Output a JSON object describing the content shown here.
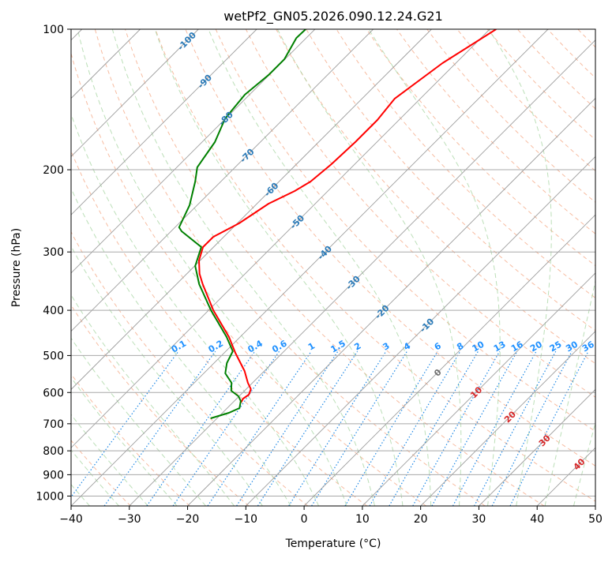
{
  "chart_data": {
    "type": "line",
    "subtype": "skew-t log-p",
    "title": "wetPf2_GN05.2026.090.12.24.G21",
    "xlabel": "Temperature (°C)",
    "ylabel": "Pressure (hPa)",
    "xlim": [
      -40,
      50
    ],
    "ylim_hpa": [
      1050,
      100
    ],
    "skew_deg": 45,
    "x_ticks": [
      "−40",
      "−30",
      "−20",
      "−10",
      "0",
      "10",
      "20",
      "30",
      "40",
      "50"
    ],
    "x_tick_values": [
      -40,
      -30,
      -20,
      -10,
      0,
      10,
      20,
      30,
      40,
      50
    ],
    "y_ticks": [
      "100",
      "200",
      "300",
      "400",
      "500",
      "600",
      "700",
      "800",
      "900",
      "1000"
    ],
    "y_tick_values": [
      100,
      200,
      300,
      400,
      500,
      600,
      700,
      800,
      900,
      1000
    ],
    "grid": true,
    "isotherm_labels": [
      {
        "t": -100,
        "text": "-100",
        "color": "#2a7ab8"
      },
      {
        "t": -90,
        "text": "-90",
        "color": "#2a7ab8"
      },
      {
        "t": -80,
        "text": "-80",
        "color": "#2a7ab8"
      },
      {
        "t": -70,
        "text": "-70",
        "color": "#2a7ab8"
      },
      {
        "t": -60,
        "text": "-60",
        "color": "#2a7ab8"
      },
      {
        "t": -50,
        "text": "-50",
        "color": "#2a7ab8"
      },
      {
        "t": -40,
        "text": "-40",
        "color": "#2a7ab8"
      },
      {
        "t": -30,
        "text": "-30",
        "color": "#2a7ab8"
      },
      {
        "t": -20,
        "text": "-20",
        "color": "#2a7ab8"
      },
      {
        "t": -10,
        "text": "-10",
        "color": "#2a7ab8"
      },
      {
        "t": 0,
        "text": "0",
        "color": "#707070"
      },
      {
        "t": 10,
        "text": "10",
        "color": "#d62728"
      },
      {
        "t": 20,
        "text": "20",
        "color": "#d62728"
      },
      {
        "t": 30,
        "text": "30",
        "color": "#d62728"
      },
      {
        "t": 40,
        "text": "40",
        "color": "#d62728"
      }
    ],
    "mixing_ratio_labels": [
      "0.1",
      "0.2",
      "0.4",
      "0.6",
      "1",
      "1.5",
      "2",
      "3",
      "4",
      "6",
      "8",
      "10",
      "13",
      "16",
      "20",
      "25",
      "30",
      "36"
    ],
    "mixing_ratio_values": [
      0.1,
      0.2,
      0.4,
      0.6,
      1,
      1.5,
      2,
      3,
      4,
      6,
      8,
      10,
      13,
      16,
      20,
      25,
      30,
      36
    ],
    "series": [
      {
        "name": "temperature",
        "color": "#ff0000",
        "points": [
          [
            100,
            -48.9
          ],
          [
            118.2,
            -52.3
          ],
          [
            140.9,
            -54.4
          ],
          [
            156.5,
            -53.7
          ],
          [
            174.5,
            -53.7
          ],
          [
            194.6,
            -54.0
          ],
          [
            212.0,
            -54.6
          ],
          [
            222.1,
            -55.7
          ],
          [
            236.4,
            -58.0
          ],
          [
            260.6,
            -59.7
          ],
          [
            278.4,
            -61.8
          ],
          [
            292.9,
            -61.8
          ],
          [
            312.9,
            -60.2
          ],
          [
            334.3,
            -57.8
          ],
          [
            351.6,
            -55.5
          ],
          [
            399.9,
            -49.2
          ],
          [
            456.4,
            -41.9
          ],
          [
            493.4,
            -38.1
          ],
          [
            539.6,
            -33.4
          ],
          [
            572.1,
            -30.8
          ],
          [
            590.2,
            -29.2
          ],
          [
            606.5,
            -28.6
          ],
          [
            618.4,
            -28.9
          ],
          [
            630.6,
            -28.6
          ]
        ]
      },
      {
        "name": "dewpoint",
        "color": "#008000",
        "points": [
          [
            100,
            -81.6
          ],
          [
            104.4,
            -81.7
          ],
          [
            115.9,
            -80.1
          ],
          [
            125.3,
            -80.1
          ],
          [
            138.1,
            -80.8
          ],
          [
            155.3,
            -80.1
          ],
          [
            174.5,
            -77.8
          ],
          [
            197.6,
            -76.5
          ],
          [
            212.0,
            -74.4
          ],
          [
            238.2,
            -71.3
          ],
          [
            265.7,
            -69.3
          ],
          [
            270.9,
            -68.2
          ],
          [
            292.9,
            -62.1
          ],
          [
            321.5,
            -59.9
          ],
          [
            351.6,
            -56.1
          ],
          [
            399.9,
            -49.6
          ],
          [
            456.4,
            -42.3
          ],
          [
            489.6,
            -38.8
          ],
          [
            518.9,
            -37.8
          ],
          [
            545.9,
            -36.3
          ],
          [
            572.1,
            -33.6
          ],
          [
            594.8,
            -32.3
          ],
          [
            611.2,
            -30.1
          ],
          [
            625.6,
            -28.9
          ],
          [
            648.0,
            -27.9
          ],
          [
            663.3,
            -28.9
          ],
          [
            681.6,
            -31.1
          ]
        ]
      }
    ]
  }
}
